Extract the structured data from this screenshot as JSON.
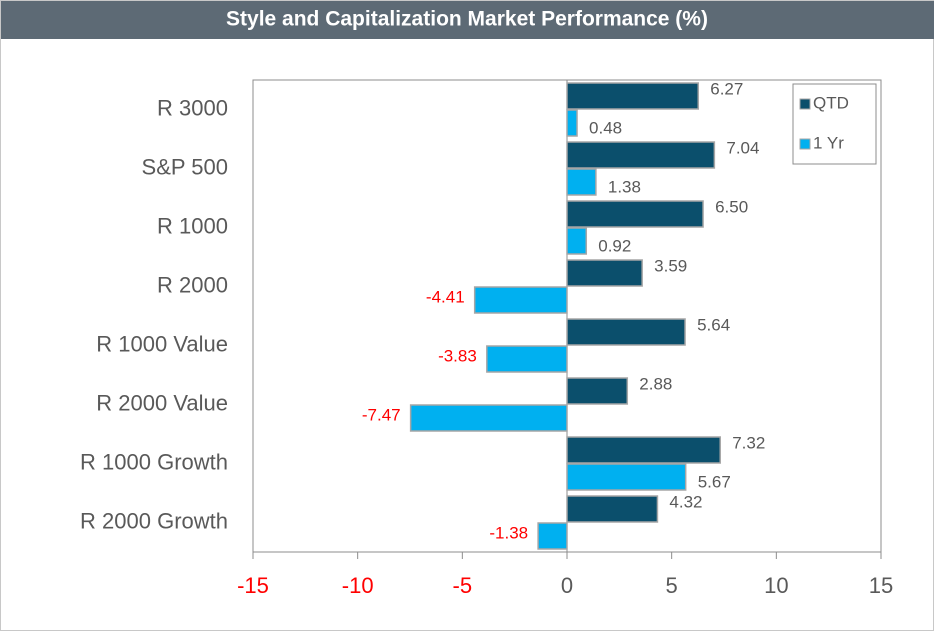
{
  "chart_data": {
    "type": "hbar",
    "title": "Style and Capitalization Market Performance (%)",
    "categories": [
      "R 3000",
      "S&P 500",
      "R 1000",
      "R 2000",
      "R 1000 Value",
      "R 2000 Value",
      "R 1000 Growth",
      "R 2000 Growth"
    ],
    "series": [
      {
        "name": "QTD",
        "color": "#0b4f6c",
        "values": [
          6.27,
          7.04,
          6.5,
          3.59,
          5.64,
          2.88,
          7.32,
          4.32
        ],
        "value_labels": [
          "6.27",
          "7.04",
          "6.50",
          "3.59",
          "5.64",
          "2.88",
          "7.32",
          "4.32"
        ]
      },
      {
        "name": "1 Yr",
        "color": "#00b0f0",
        "values": [
          0.48,
          1.38,
          0.92,
          -4.41,
          -3.83,
          -7.47,
          5.67,
          -1.38
        ],
        "value_labels": [
          "0.48",
          "1.38",
          "0.92",
          "-4.41",
          "-3.83",
          "-7.47",
          "5.67",
          "-1.38"
        ]
      }
    ],
    "xlim": [
      -15,
      15
    ],
    "xticks": [
      -15,
      -10,
      -5,
      0,
      5,
      10,
      15
    ],
    "negative_color": "#ff0000",
    "legend": "upper right"
  }
}
